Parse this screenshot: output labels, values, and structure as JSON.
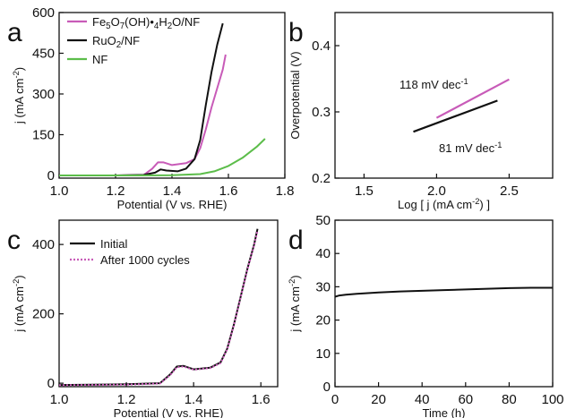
{
  "chart_data": [
    {
      "panel": "a",
      "type": "line",
      "xlabel": "Potential (V vs. RHE)",
      "ylabel": "j (mA cm-2)",
      "xlim": [
        1.0,
        1.8
      ],
      "ylim": [
        -10,
        600
      ],
      "xticks": [
        1.0,
        1.2,
        1.4,
        1.6,
        1.8
      ],
      "yticks": [
        0,
        150,
        300,
        450,
        600
      ],
      "legend_placement": "top-left",
      "series": [
        {
          "name": "Fe5O7(OH)•4H2O/NF",
          "color": "#c85bb8",
          "x": [
            1.0,
            1.2,
            1.3,
            1.33,
            1.35,
            1.37,
            1.4,
            1.45,
            1.48,
            1.5,
            1.52,
            1.54,
            1.56,
            1.58,
            1.59
          ],
          "y": [
            0,
            0,
            2,
            25,
            48,
            48,
            38,
            45,
            60,
            100,
            170,
            250,
            320,
            390,
            445
          ]
        },
        {
          "name": "RuO2/NF",
          "color": "#111111",
          "x": [
            1.0,
            1.2,
            1.3,
            1.34,
            1.36,
            1.38,
            1.42,
            1.45,
            1.48,
            1.5,
            1.52,
            1.54,
            1.56,
            1.58
          ],
          "y": [
            0,
            0,
            2,
            10,
            22,
            18,
            15,
            25,
            60,
            130,
            260,
            380,
            480,
            560
          ]
        },
        {
          "name": "NF",
          "color": "#5cbd4a",
          "x": [
            1.0,
            1.2,
            1.3,
            1.4,
            1.5,
            1.55,
            1.6,
            1.65,
            1.7,
            1.73
          ],
          "y": [
            0,
            0,
            0,
            1,
            5,
            15,
            35,
            65,
            105,
            135
          ]
        }
      ]
    },
    {
      "panel": "b",
      "type": "line",
      "xlabel": "Log [ j (mA cm-2) ]",
      "ylabel": "Overpotential (V)",
      "xlim": [
        1.3,
        2.8
      ],
      "ylim": [
        0.2,
        0.45
      ],
      "xticks": [
        1.5,
        2.0,
        2.5
      ],
      "yticks": [
        0.2,
        0.3,
        0.4
      ],
      "annotations": [
        "118 mV dec-1",
        "81 mV dec-1"
      ],
      "series": [
        {
          "color": "#c85bb8",
          "x": [
            2.0,
            2.5
          ],
          "y": [
            0.291,
            0.349
          ]
        },
        {
          "color": "#111111",
          "x": [
            1.84,
            2.42
          ],
          "y": [
            0.27,
            0.317
          ]
        }
      ]
    },
    {
      "panel": "c",
      "type": "line",
      "xlabel": "Potential (V vs. RHE)",
      "ylabel": "j (mA cm-2)",
      "xlim": [
        1.0,
        1.65
      ],
      "ylim": [
        -10,
        470
      ],
      "xticks": [
        1.0,
        1.2,
        1.4,
        1.6
      ],
      "yticks": [
        0,
        200,
        400
      ],
      "legend_placement": "top-left",
      "series": [
        {
          "name": "Initial",
          "color": "#111111",
          "dashed": false,
          "x": [
            1.0,
            1.2,
            1.3,
            1.33,
            1.35,
            1.37,
            1.4,
            1.45,
            1.48,
            1.5,
            1.52,
            1.54,
            1.56,
            1.58,
            1.59
          ],
          "y": [
            -5,
            -3,
            0,
            25,
            48,
            50,
            40,
            45,
            60,
            100,
            170,
            250,
            330,
            400,
            445
          ]
        },
        {
          "name": "After 1000 cycles",
          "color": "#c85bb8",
          "dashed": true,
          "x": [
            1.0,
            1.2,
            1.3,
            1.33,
            1.35,
            1.37,
            1.4,
            1.45,
            1.48,
            1.5,
            1.52,
            1.54,
            1.56,
            1.58,
            1.59
          ],
          "y": [
            -6,
            -4,
            -1,
            23,
            46,
            48,
            39,
            44,
            58,
            98,
            168,
            248,
            328,
            398,
            440
          ]
        }
      ]
    },
    {
      "panel": "d",
      "type": "line",
      "xlabel": "Time (h)",
      "ylabel": "j (mA cm-2)",
      "xlim": [
        0,
        100
      ],
      "ylim": [
        0,
        50
      ],
      "xticks": [
        0,
        20,
        40,
        60,
        80,
        100
      ],
      "yticks": [
        0,
        10,
        20,
        30,
        40,
        50
      ],
      "series": [
        {
          "color": "#111111",
          "x": [
            0,
            2,
            5,
            10,
            20,
            30,
            40,
            50,
            60,
            70,
            80,
            90,
            100
          ],
          "y": [
            27.0,
            27.4,
            27.6,
            27.9,
            28.3,
            28.6,
            28.8,
            29.0,
            29.2,
            29.4,
            29.6,
            29.7,
            29.7
          ]
        }
      ]
    }
  ]
}
